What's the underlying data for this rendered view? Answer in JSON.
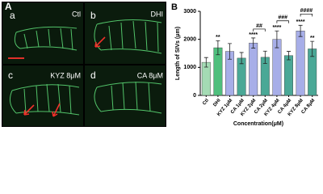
{
  "panel_a": {
    "label": "A",
    "images": [
      {
        "letter": "a",
        "caption": "Ctl"
      },
      {
        "letter": "b",
        "caption": "DHI"
      },
      {
        "letter": "c",
        "caption": "KYZ 8μM"
      },
      {
        "letter": "d",
        "caption": "CA 8μM"
      }
    ]
  },
  "chart_data": {
    "type": "bar",
    "panel_label": "B",
    "y_label": "Length of SIVs (μm)",
    "x_label": "Concentration(μM)",
    "categories": [
      "Ctl",
      "DHI",
      "KYZ 1μM",
      "CA 1μM",
      "KYZ 2μM",
      "CA 2μM",
      "KYZ 4μM",
      "CA 4μM",
      "KYZ 8μM",
      "CA 8μM"
    ],
    "values": [
      1180,
      1700,
      1570,
      1330,
      1870,
      1360,
      2000,
      1420,
      2300,
      1660
    ],
    "errors": [
      170,
      250,
      280,
      200,
      180,
      220,
      300,
      150,
      200,
      270
    ],
    "colors": [
      "#a4dbb4",
      "#4fbf7d",
      "#a7aee8",
      "#4aa896",
      "#a7aee8",
      "#4aa896",
      "#a7aee8",
      "#4aa896",
      "#a7aee8",
      "#4aa896"
    ],
    "significance": [
      null,
      "**",
      null,
      null,
      "****",
      null,
      "****",
      null,
      "****",
      "**"
    ],
    "comparisons": [
      {
        "label": "##",
        "between": [
          "KYZ 2μM",
          "CA 2μM"
        ]
      },
      {
        "label": "###",
        "between": [
          "KYZ 4μM",
          "CA 4μM"
        ]
      },
      {
        "label": "####",
        "between": [
          "KYZ 8μM",
          "CA 8μM"
        ]
      }
    ],
    "ylim": [
      0,
      3000
    ],
    "yticks": [
      0,
      1000,
      2000,
      3000
    ]
  }
}
